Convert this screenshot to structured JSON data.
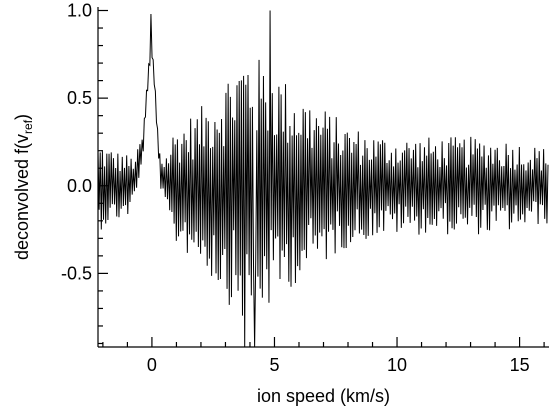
{
  "chart_data": {
    "type": "line",
    "title": "",
    "xlabel": "ion speed (km/s)",
    "ylabel_main": "deconvolved f(v",
    "ylabel_sub": "ref",
    "ylabel_close": ")",
    "xlim": [
      -2.2,
      16.2
    ],
    "ylim": [
      -0.92,
      1.02
    ],
    "xticks": [
      0,
      5,
      10,
      15
    ],
    "xtick_labels": [
      "0",
      "5",
      "10",
      "15"
    ],
    "yticks": [
      -0.5,
      0.0,
      0.5,
      1.0
    ],
    "ytick_labels": [
      "-0.5",
      "0.0",
      "0.5",
      "1.0"
    ],
    "grid": false,
    "line_color": "#000000",
    "series": [
      {
        "x": [
          -2.2,
          -2.0,
          -1.8,
          -1.6,
          -1.4,
          -1.2,
          -1.0,
          -0.8,
          -0.6,
          -0.4,
          -0.3,
          -0.2,
          -0.1,
          0.0,
          0.1,
          0.2,
          0.3,
          0.4,
          0.6,
          0.8,
          1.0,
          1.5,
          2.0,
          2.5,
          3.0,
          3.5,
          3.8,
          4.0,
          4.2,
          4.5,
          4.8,
          5.0,
          5.5,
          6.0,
          6.5,
          7.0,
          7.5,
          8.0,
          9.0,
          10.0,
          11.0,
          12.0,
          13.0,
          14.0,
          15.0,
          16.0
        ],
        "y_envelope": [
          0.25,
          0.25,
          0.22,
          0.22,
          0.2,
          0.2,
          0.18,
          0.15,
          0.12,
          0.1,
          0.05,
          0.05,
          0.05,
          0.05,
          0.05,
          0.05,
          0.08,
          0.12,
          0.2,
          0.3,
          0.35,
          0.4,
          0.45,
          0.55,
          0.65,
          0.75,
          0.8,
          0.8,
          0.75,
          0.72,
          0.72,
          0.7,
          0.6,
          0.55,
          0.5,
          0.45,
          0.4,
          0.35,
          0.3,
          0.28,
          0.28,
          0.28,
          0.28,
          0.28,
          0.25,
          0.22
        ],
        "y_trend": [
          0.0,
          0.0,
          0.0,
          0.0,
          0.0,
          0.0,
          0.0,
          0.02,
          0.08,
          0.2,
          0.35,
          0.55,
          0.7,
          0.76,
          0.6,
          0.35,
          0.15,
          0.05,
          0.0,
          0.0,
          0.0,
          0.0,
          0.0,
          0.0,
          0.0,
          0.0,
          0.0,
          0.0,
          0.0,
          0.0,
          0.0,
          0.0,
          0.0,
          0.0,
          0.0,
          0.0,
          0.0,
          0.0,
          0.0,
          0.0,
          0.0,
          0.0,
          0.0,
          0.0,
          0.0,
          0.0
        ],
        "peak": {
          "x": -0.05,
          "y": 0.98
        },
        "spikes": [
          {
            "x": 4.8,
            "y": 1.0
          },
          {
            "x": 3.8,
            "y": -0.95
          },
          {
            "x": 4.2,
            "y": -0.92
          }
        ]
      }
    ]
  }
}
